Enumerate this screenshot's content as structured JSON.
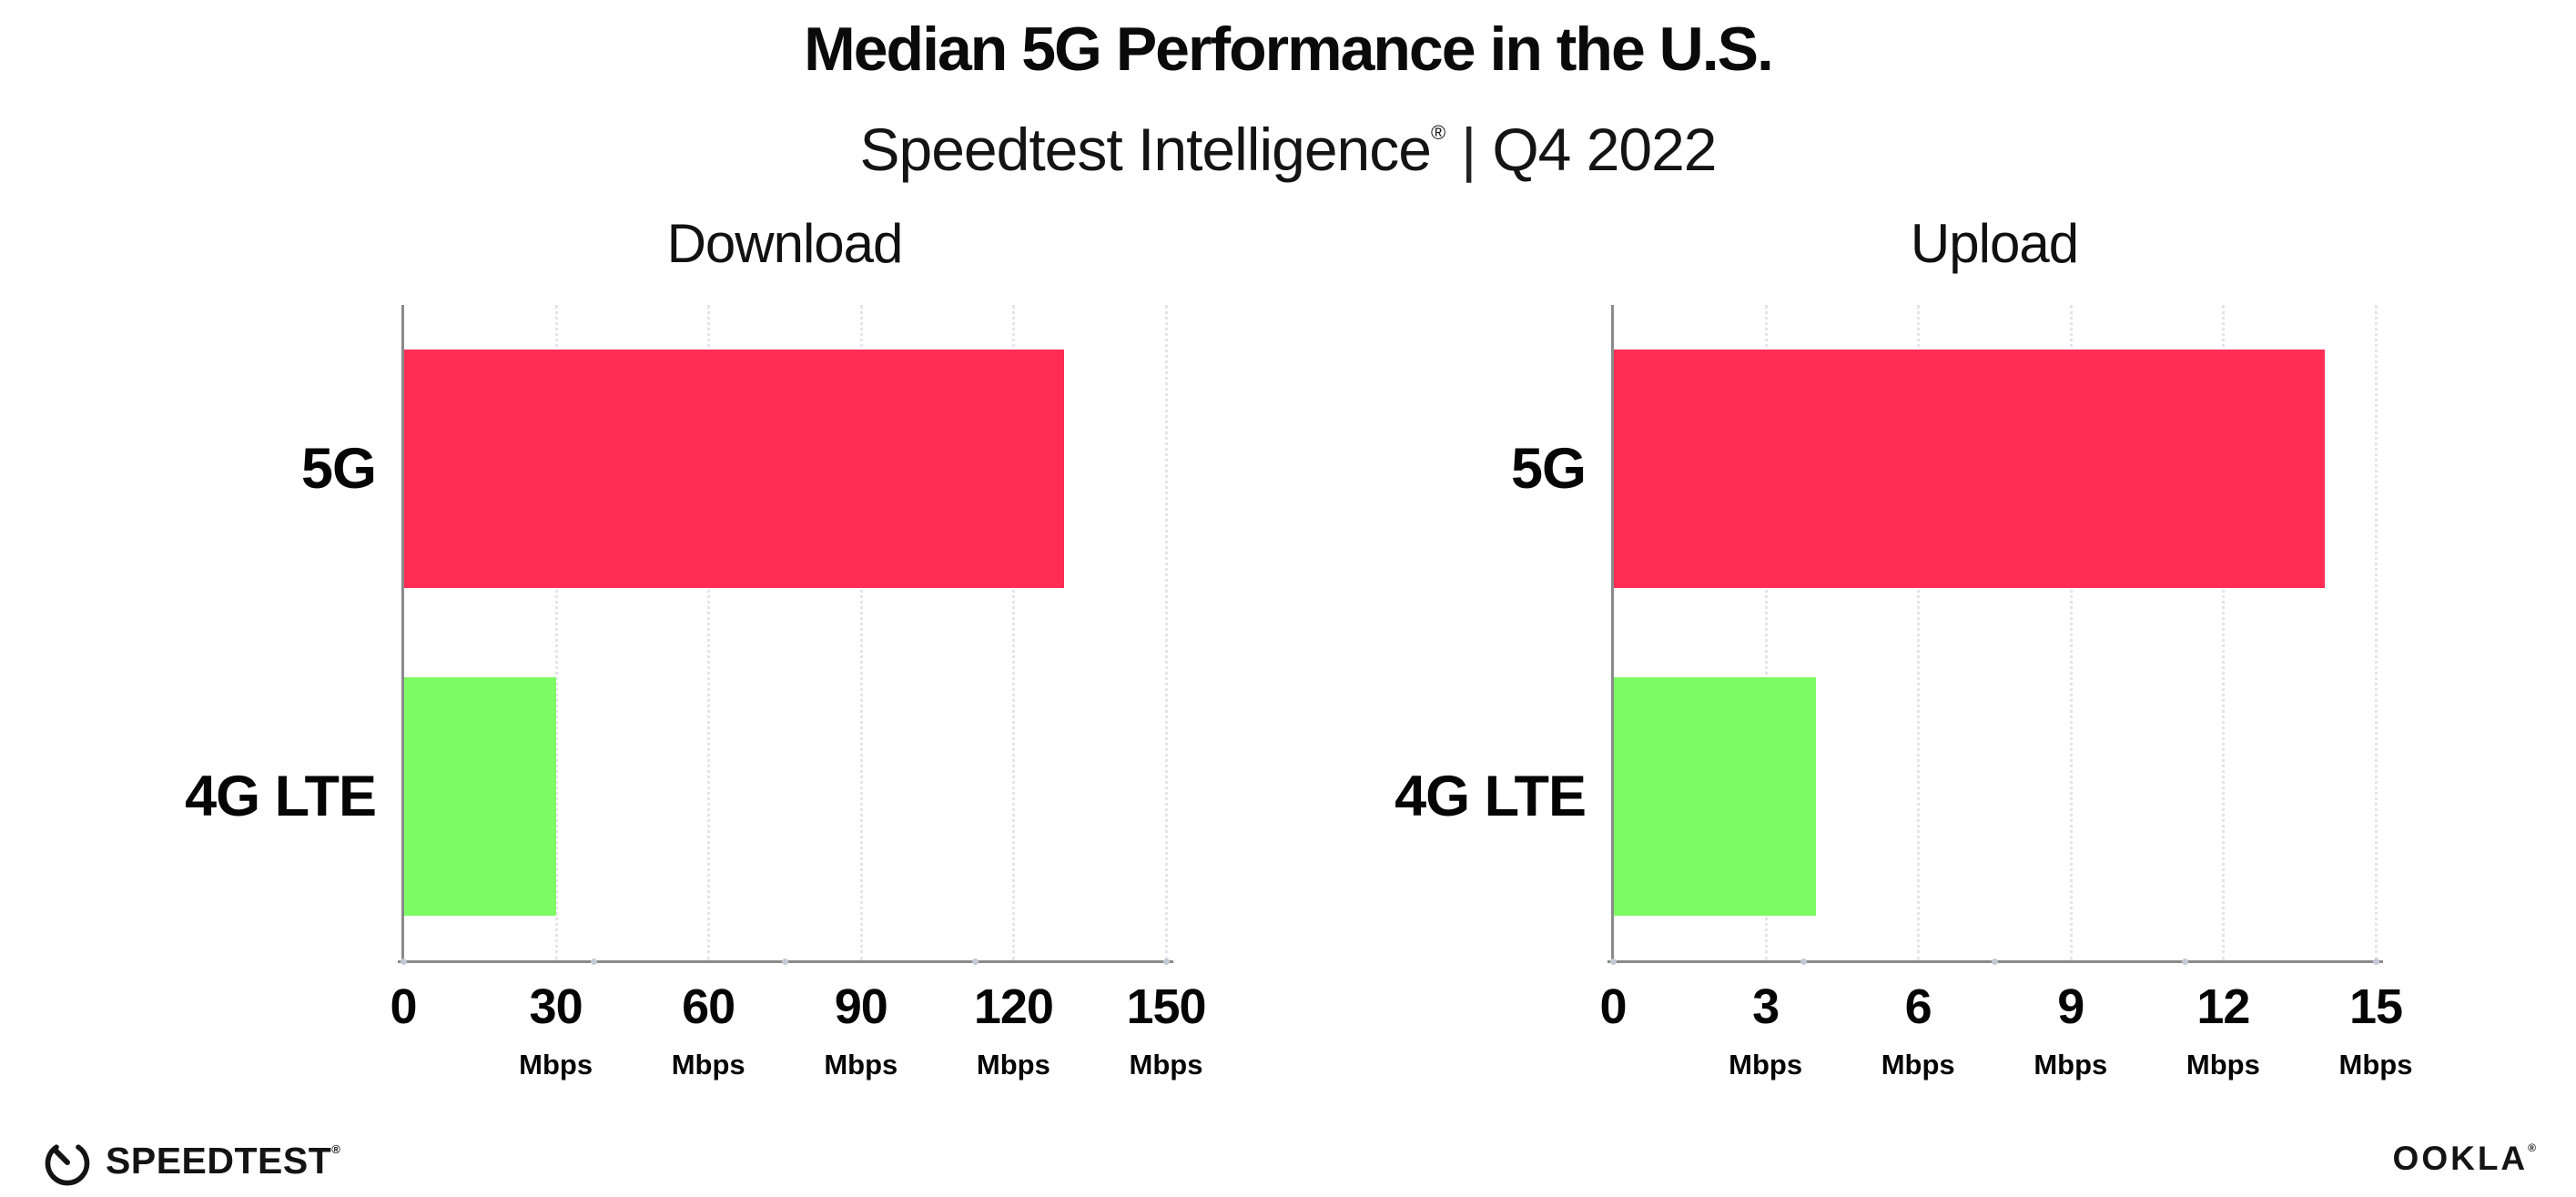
{
  "header": {
    "title": "Median 5G Performance in the U.S.",
    "subtitle": {
      "brand": "Speedtest Intelligence",
      "registered_mark": "®",
      "divider": "|",
      "period": "Q4 2022"
    }
  },
  "footer": {
    "speedtest": {
      "label": "SPEEDTEST",
      "mark": "®"
    },
    "ookla": {
      "label": "OOKLA",
      "mark": "®"
    }
  },
  "colors": {
    "bar_5g": "#FF2D55",
    "bar_4g_lte": "#7DFB63",
    "axis": "#8A8A8A",
    "gridline": "#E4E4EA",
    "tick_dot": "#C3C9D5",
    "text": "#050505",
    "background": "#FFFFFF"
  },
  "chart_data": [
    {
      "type": "bar",
      "orientation": "horizontal",
      "title": "Download",
      "categories": [
        "5G",
        "4G LTE"
      ],
      "values": [
        130,
        30
      ],
      "unit": "Mbps",
      "xlim": [
        0,
        150
      ],
      "xticks": [
        0,
        30,
        60,
        90,
        120,
        150
      ],
      "bar_colors": [
        "#FF2D55",
        "#7DFB63"
      ],
      "grid": "vertical-dotted",
      "legend": "none"
    },
    {
      "type": "bar",
      "orientation": "horizontal",
      "title": "Upload",
      "categories": [
        "5G",
        "4G LTE"
      ],
      "values": [
        14,
        4
      ],
      "unit": "Mbps",
      "xlim": [
        0,
        15
      ],
      "xticks": [
        0,
        3,
        6,
        9,
        12,
        15
      ],
      "bar_colors": [
        "#FF2D55",
        "#7DFB63"
      ],
      "grid": "vertical-dotted",
      "legend": "none"
    }
  ]
}
